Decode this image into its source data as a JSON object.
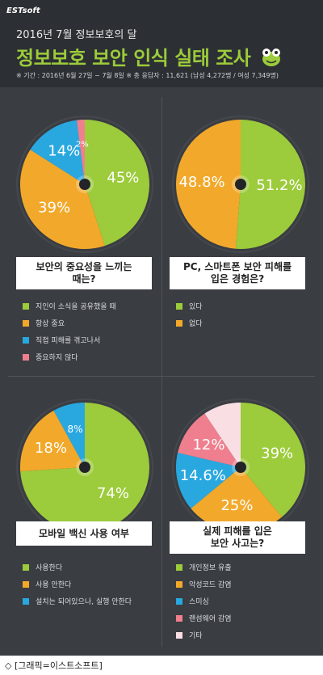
{
  "header": {
    "brand": "ESTsoft",
    "supertitle": "2016년 7월 정보보호의 달",
    "title": "정보보호 보안 인식 실태 조사",
    "period": "※ 기간 : 2016년 6월 27일 ~ 7월 8일   ※ 총 응답자 : 11,621 (남성 4,272명 / 여성 7,349명)"
  },
  "footer": "◇ [그래픽=이스트소프트]",
  "colors": {
    "green": "#9ccb3b",
    "orange": "#f2a92b",
    "blue": "#29a8e0",
    "pink": "#ef7f8e",
    "lightpink": "#f9dfe4",
    "background": "#3a3d42"
  },
  "chart_data": [
    {
      "type": "pie",
      "question": [
        "보안의 중요성을 느끼는",
        "때는?"
      ],
      "categories": [
        "지인이 소식을 공유했을 때",
        "항상 중요",
        "직접 피해를 겪고나서",
        "중요하지 않다"
      ],
      "values": [
        45,
        39,
        14,
        2
      ],
      "value_labels": [
        "45%",
        "39%",
        "14%",
        "2%"
      ],
      "colors": [
        "#9ccb3b",
        "#f2a92b",
        "#29a8e0",
        "#ef7f8e"
      ],
      "legend": "bottom"
    },
    {
      "type": "pie",
      "question": [
        "PC, 스마트폰 보안 피해를",
        "입은 경험은?"
      ],
      "categories": [
        "있다",
        "없다"
      ],
      "values": [
        51.2,
        48.8
      ],
      "value_labels": [
        "51.2%",
        "48.8%"
      ],
      "colors": [
        "#9ccb3b",
        "#f2a92b"
      ],
      "legend": "bottom"
    },
    {
      "type": "pie",
      "question": [
        "모바일 백신 사용 여부"
      ],
      "categories": [
        "사용한다",
        "사용 안한다",
        "설치는 되어있으나, 실행 안한다"
      ],
      "values": [
        74,
        18,
        8
      ],
      "value_labels": [
        "74%",
        "18%",
        "8%"
      ],
      "colors": [
        "#9ccb3b",
        "#f2a92b",
        "#29a8e0"
      ],
      "legend": "bottom"
    },
    {
      "type": "pie",
      "question": [
        "실제 피해를 입은",
        "보안 사고는?"
      ],
      "categories": [
        "개인정보 유출",
        "악성코드 감염",
        "스미싱",
        "랜섬웨어 감염",
        "기타"
      ],
      "values": [
        39,
        25,
        14.6,
        12,
        9.4
      ],
      "value_labels": [
        "39%",
        "25%",
        "14.6%",
        "12%",
        ""
      ],
      "colors": [
        "#9ccb3b",
        "#f2a92b",
        "#29a8e0",
        "#ef7f8e",
        "#f9dfe4"
      ],
      "legend": "bottom"
    }
  ]
}
